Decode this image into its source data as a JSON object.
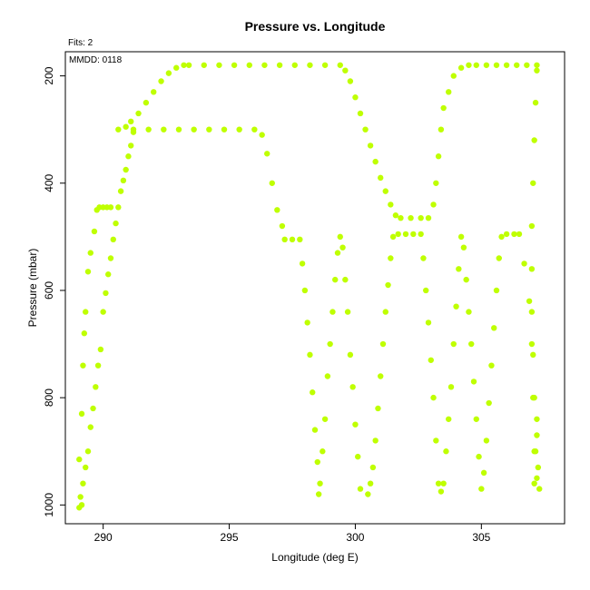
{
  "chart_data": {
    "type": "scatter",
    "title": "Pressure vs. Longitude",
    "xlabel": "Longitude (deg E)",
    "ylabel": "Pressure (mbar)",
    "xlim": [
      288.5,
      308.3
    ],
    "ylim": [
      1035,
      155
    ],
    "y_reversed": true,
    "x_ticks": [
      290,
      295,
      300,
      305
    ],
    "y_ticks": [
      200,
      400,
      600,
      800,
      1000
    ],
    "grid": false,
    "annotations": [
      "Fits: 2",
      "MMDD: 0118"
    ],
    "point_color": "#bfff00",
    "series": [
      {
        "points": [
          [
            289.05,
            1005
          ],
          [
            289.1,
            985
          ],
          [
            289.2,
            960
          ],
          [
            289.3,
            930
          ],
          [
            289.4,
            900
          ],
          [
            289.5,
            855
          ],
          [
            289.6,
            820
          ],
          [
            289.7,
            780
          ],
          [
            289.8,
            740
          ],
          [
            289.9,
            710
          ],
          [
            290.0,
            640
          ],
          [
            290.1,
            605
          ],
          [
            290.2,
            570
          ],
          [
            290.3,
            540
          ],
          [
            290.4,
            505
          ],
          [
            290.5,
            475
          ],
          [
            290.6,
            445
          ],
          [
            290.7,
            415
          ],
          [
            290.8,
            395
          ],
          [
            290.9,
            375
          ],
          [
            291.0,
            350
          ],
          [
            291.1,
            330
          ],
          [
            291.2,
            305
          ],
          [
            289.15,
            1000
          ],
          [
            289.2,
            740
          ],
          [
            289.25,
            680
          ],
          [
            289.3,
            640
          ],
          [
            289.4,
            565
          ],
          [
            289.5,
            530
          ],
          [
            289.65,
            490
          ],
          [
            289.75,
            450
          ],
          [
            289.85,
            445
          ],
          [
            290.0,
            445
          ],
          [
            290.15,
            445
          ],
          [
            290.3,
            445
          ],
          [
            289.05,
            915
          ],
          [
            289.15,
            830
          ],
          [
            290.6,
            300
          ],
          [
            290.9,
            295
          ],
          [
            291.1,
            285
          ],
          [
            291.4,
            270
          ],
          [
            291.7,
            250
          ],
          [
            292.0,
            230
          ],
          [
            292.3,
            210
          ],
          [
            292.6,
            195
          ],
          [
            292.9,
            185
          ],
          [
            293.2,
            180
          ],
          [
            293.4,
            180
          ],
          [
            294.0,
            180
          ],
          [
            294.6,
            180
          ],
          [
            295.2,
            180
          ],
          [
            295.8,
            180
          ],
          [
            296.4,
            180
          ],
          [
            297.0,
            180
          ],
          [
            297.6,
            180
          ],
          [
            298.2,
            180
          ],
          [
            298.8,
            180
          ],
          [
            299.4,
            180
          ],
          [
            291.2,
            300
          ],
          [
            291.8,
            300
          ],
          [
            292.4,
            300
          ],
          [
            293.0,
            300
          ],
          [
            293.6,
            300
          ],
          [
            294.2,
            300
          ],
          [
            294.8,
            300
          ],
          [
            295.4,
            300
          ],
          [
            296.0,
            300
          ],
          [
            296.3,
            310
          ],
          [
            296.5,
            345
          ],
          [
            296.7,
            400
          ],
          [
            296.9,
            450
          ],
          [
            297.1,
            480
          ],
          [
            297.2,
            505
          ],
          [
            297.5,
            505
          ],
          [
            297.8,
            505
          ],
          [
            297.9,
            550
          ],
          [
            298.0,
            600
          ],
          [
            298.1,
            660
          ],
          [
            298.2,
            720
          ],
          [
            298.3,
            790
          ],
          [
            298.4,
            860
          ],
          [
            298.5,
            920
          ],
          [
            298.55,
            980
          ],
          [
            298.6,
            960
          ],
          [
            298.7,
            900
          ],
          [
            298.8,
            840
          ],
          [
            298.9,
            760
          ],
          [
            299.0,
            700
          ],
          [
            299.1,
            640
          ],
          [
            299.2,
            580
          ],
          [
            299.3,
            530
          ],
          [
            299.4,
            500
          ],
          [
            299.5,
            520
          ],
          [
            299.6,
            580
          ],
          [
            299.7,
            640
          ],
          [
            299.8,
            720
          ],
          [
            299.9,
            780
          ],
          [
            300.0,
            850
          ],
          [
            300.1,
            910
          ],
          [
            300.2,
            970
          ],
          [
            299.6,
            190
          ],
          [
            299.8,
            210
          ],
          [
            300.0,
            240
          ],
          [
            300.2,
            270
          ],
          [
            300.4,
            300
          ],
          [
            300.6,
            330
          ],
          [
            300.8,
            360
          ],
          [
            301.0,
            390
          ],
          [
            301.2,
            415
          ],
          [
            301.4,
            440
          ],
          [
            301.6,
            460
          ],
          [
            301.8,
            465
          ],
          [
            302.2,
            465
          ],
          [
            302.6,
            465
          ],
          [
            302.9,
            465
          ],
          [
            300.5,
            980
          ],
          [
            300.6,
            960
          ],
          [
            300.7,
            930
          ],
          [
            300.8,
            880
          ],
          [
            300.9,
            820
          ],
          [
            301.0,
            760
          ],
          [
            301.1,
            700
          ],
          [
            301.2,
            640
          ],
          [
            301.3,
            590
          ],
          [
            301.4,
            540
          ],
          [
            301.5,
            500
          ],
          [
            301.7,
            495
          ],
          [
            302.0,
            495
          ],
          [
            302.3,
            495
          ],
          [
            302.6,
            495
          ],
          [
            302.7,
            540
          ],
          [
            302.8,
            600
          ],
          [
            302.9,
            660
          ],
          [
            303.0,
            730
          ],
          [
            303.1,
            800
          ],
          [
            303.2,
            880
          ],
          [
            303.3,
            960
          ],
          [
            303.4,
            975
          ],
          [
            303.1,
            440
          ],
          [
            303.2,
            400
          ],
          [
            303.3,
            350
          ],
          [
            303.4,
            300
          ],
          [
            303.5,
            260
          ],
          [
            303.7,
            230
          ],
          [
            303.9,
            200
          ],
          [
            304.2,
            185
          ],
          [
            304.5,
            180
          ],
          [
            303.5,
            960
          ],
          [
            303.6,
            900
          ],
          [
            303.7,
            840
          ],
          [
            303.8,
            780
          ],
          [
            303.9,
            700
          ],
          [
            304.0,
            630
          ],
          [
            304.1,
            560
          ],
          [
            304.2,
            500
          ],
          [
            304.3,
            520
          ],
          [
            304.4,
            580
          ],
          [
            304.5,
            640
          ],
          [
            304.6,
            700
          ],
          [
            304.7,
            770
          ],
          [
            304.8,
            840
          ],
          [
            304.9,
            910
          ],
          [
            305.0,
            970
          ],
          [
            304.8,
            180
          ],
          [
            305.2,
            180
          ],
          [
            305.6,
            180
          ],
          [
            306.0,
            180
          ],
          [
            306.4,
            180
          ],
          [
            306.8,
            180
          ],
          [
            307.2,
            180
          ],
          [
            305.1,
            940
          ],
          [
            305.2,
            880
          ],
          [
            305.3,
            810
          ],
          [
            305.4,
            740
          ],
          [
            305.5,
            670
          ],
          [
            305.6,
            600
          ],
          [
            305.7,
            540
          ],
          [
            305.8,
            500
          ],
          [
            306.0,
            495
          ],
          [
            306.3,
            495
          ],
          [
            306.5,
            495
          ],
          [
            306.7,
            550
          ],
          [
            306.9,
            620
          ],
          [
            307.0,
            700
          ],
          [
            307.05,
            800
          ],
          [
            307.1,
            900
          ],
          [
            307.1,
            960
          ],
          [
            307.2,
            190
          ],
          [
            307.15,
            250
          ],
          [
            307.1,
            320
          ],
          [
            307.05,
            400
          ],
          [
            307.0,
            480
          ],
          [
            307.0,
            560
          ],
          [
            307.0,
            640
          ],
          [
            307.05,
            720
          ],
          [
            307.1,
            800
          ],
          [
            307.2,
            870
          ],
          [
            307.25,
            930
          ],
          [
            307.3,
            970
          ],
          [
            307.2,
            840
          ],
          [
            307.15,
            900
          ],
          [
            307.2,
            950
          ]
        ]
      }
    ]
  }
}
